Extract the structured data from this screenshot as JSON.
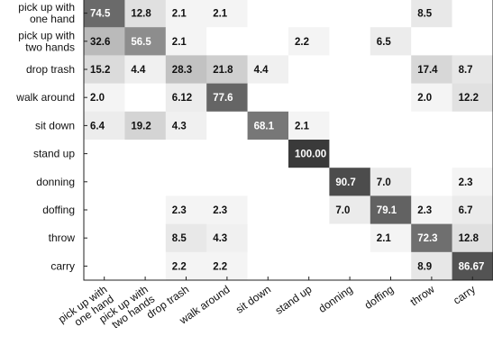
{
  "chart_data": {
    "type": "heatmap",
    "rows": [
      [
        "pick up with",
        "one hand"
      ],
      [
        "pick up with",
        "two hands"
      ],
      [
        "drop trash"
      ],
      [
        "walk around"
      ],
      [
        "sit down"
      ],
      [
        "stand up"
      ],
      [
        "donning"
      ],
      [
        "doffing"
      ],
      [
        "throw"
      ],
      [
        "carry"
      ]
    ],
    "columns": [
      [
        "pick up with",
        "one hand"
      ],
      [
        "pick up with",
        "two hands"
      ],
      [
        "drop trash"
      ],
      [
        "walk around"
      ],
      [
        "sit down"
      ],
      [
        "stand up"
      ],
      [
        "donning"
      ],
      [
        "doffing"
      ],
      [
        "throw"
      ],
      [
        "carry"
      ]
    ],
    "cells": [
      [
        "74.5",
        "12.8",
        "2.1",
        "2.1",
        "",
        "",
        "",
        "",
        "8.5",
        ""
      ],
      [
        "32.6",
        "56.5",
        "2.1",
        "",
        "",
        "2.2",
        "",
        "6.5",
        "",
        ""
      ],
      [
        "15.2",
        "4.4",
        "28.3",
        "21.8",
        "4.4",
        "",
        "",
        "",
        "17.4",
        "8.7"
      ],
      [
        "2.0",
        "",
        "6.12",
        "77.6",
        "",
        "",
        "",
        "",
        "2.0",
        "12.2"
      ],
      [
        "6.4",
        "19.2",
        "4.3",
        "",
        "68.1",
        "2.1",
        "",
        "",
        "",
        ""
      ],
      [
        "",
        "",
        "",
        "",
        "",
        "100.00",
        "",
        "",
        "",
        ""
      ],
      [
        "",
        "",
        "",
        "",
        "",
        "",
        "90.7",
        "7.0",
        "",
        "2.3"
      ],
      [
        "",
        "",
        "2.3",
        "2.3",
        "",
        "",
        "7.0",
        "79.1",
        "2.3",
        "6.7"
      ],
      [
        "",
        "",
        "8.5",
        "4.3",
        "",
        "",
        "",
        "2.1",
        "72.3",
        "12.8"
      ],
      [
        "",
        "",
        "2.2",
        "2.2",
        "",
        "",
        "",
        "",
        "8.9",
        "86.67"
      ]
    ],
    "value_range": [
      0,
      100
    ],
    "colorscale": [
      "#ffffff",
      "#3a3a3a"
    ]
  }
}
